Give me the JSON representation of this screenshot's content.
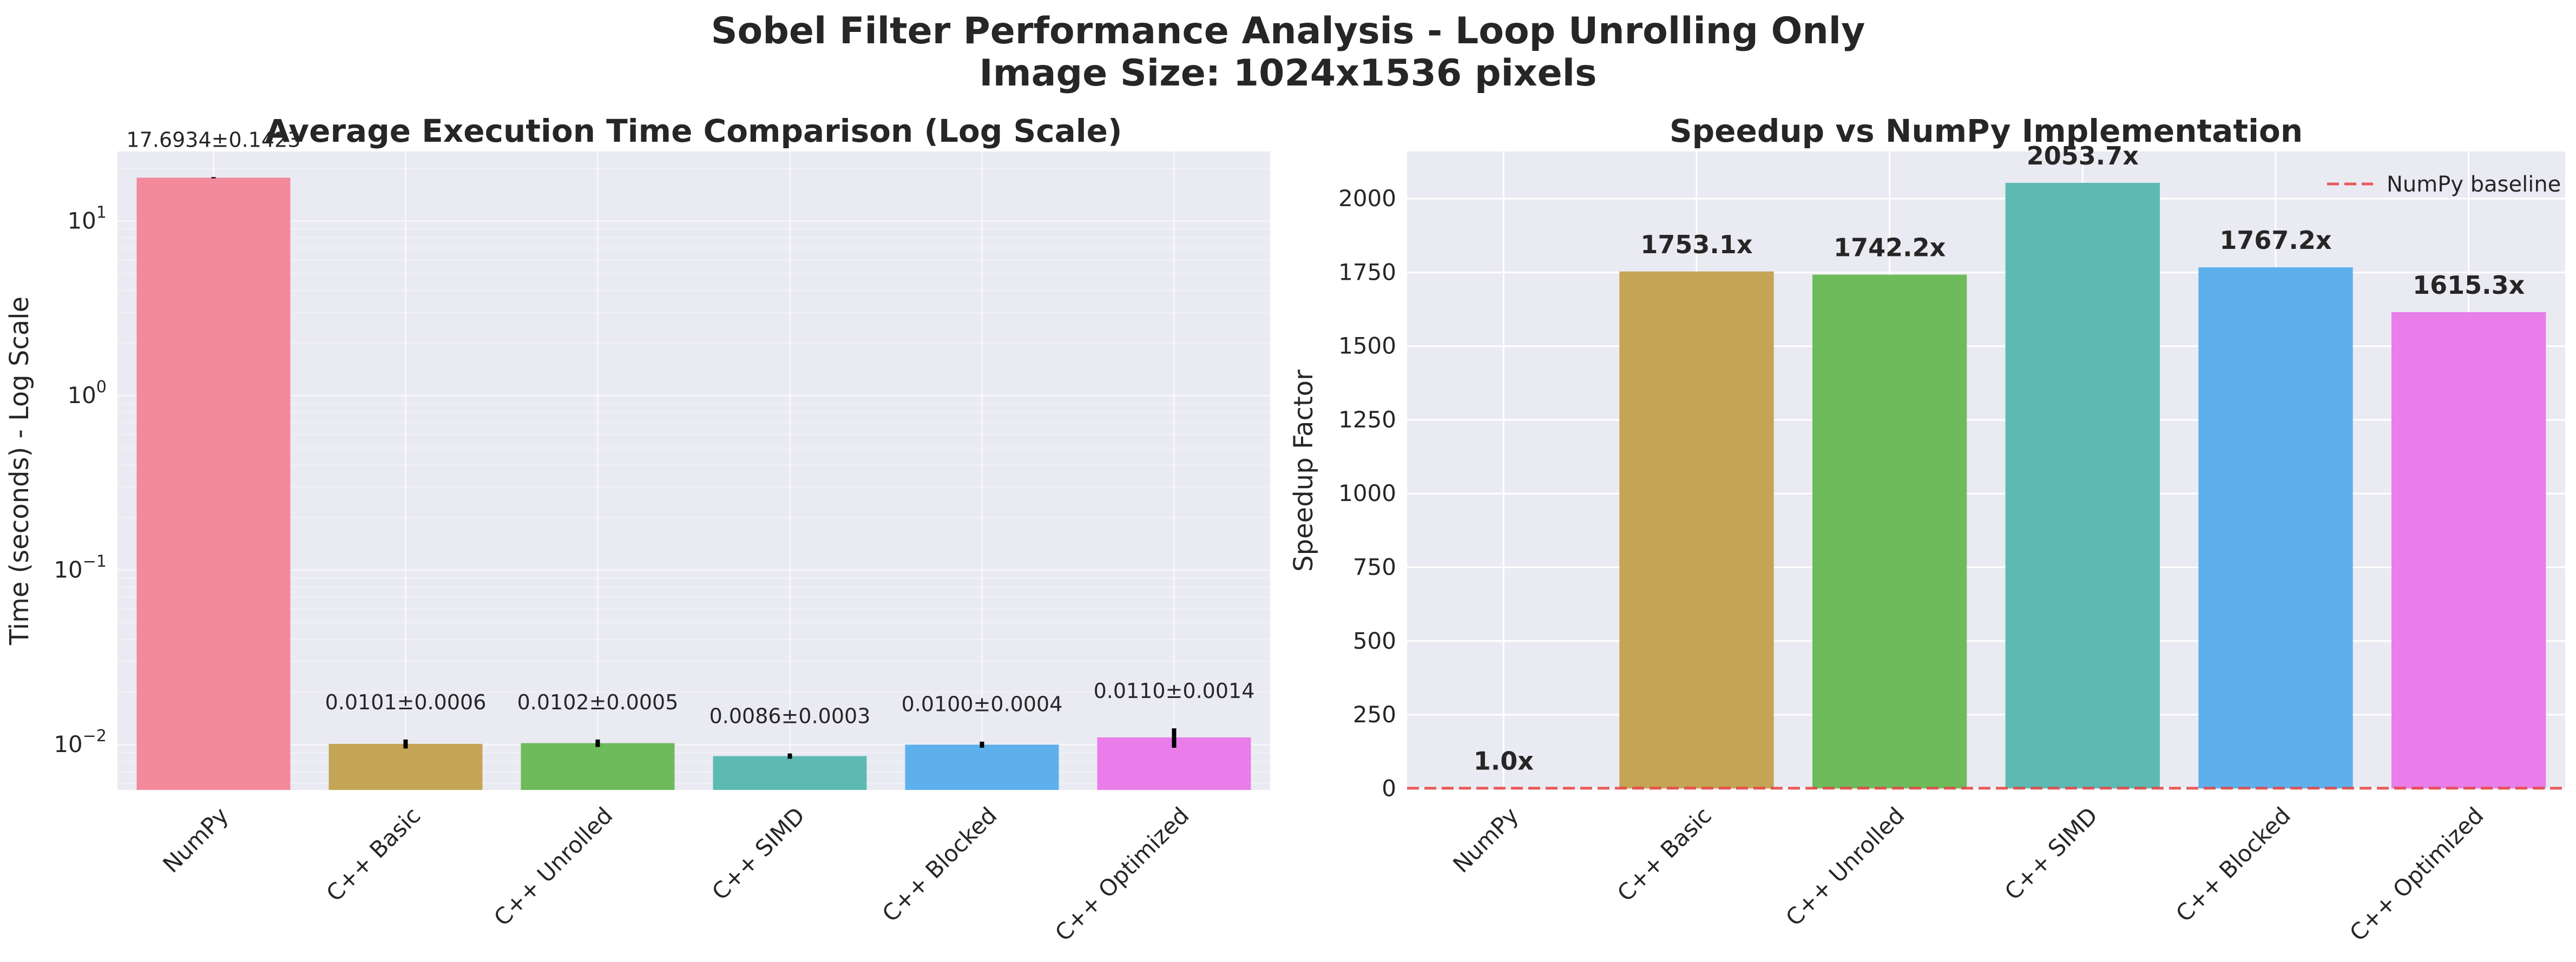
{
  "suptitle_line1": "Sobel Filter Performance Analysis - Loop Unrolling Only",
  "suptitle_line2": "Image Size: 1024x1536 pixels",
  "colors": {
    "panel_bg": "#eaeaf2",
    "grid": "#ffffff",
    "text": "#262626",
    "baseline": "#e8413f",
    "errorbar": "#000000",
    "bars": [
      "#f28a9c",
      "#c4a555",
      "#6dbb5b",
      "#5cbab3",
      "#5eb0ec",
      "#e97de9"
    ]
  },
  "chart_data": [
    {
      "type": "bar",
      "title": "Average Execution Time Comparison (Log Scale)",
      "xlabel": "",
      "ylabel": "Time (seconds) - Log Scale",
      "yscale": "log",
      "ylim": [
        0.0055,
        25
      ],
      "yticks": [
        {
          "value": 10,
          "base": "10",
          "exp": "1"
        },
        {
          "value": 1,
          "base": "10",
          "exp": "0"
        },
        {
          "value": 0.1,
          "base": "10",
          "exp": "−1"
        },
        {
          "value": 0.01,
          "base": "10",
          "exp": "−2"
        }
      ],
      "categories": [
        "NumPy",
        "C++ Basic",
        "C++ Unrolled",
        "C++ SIMD",
        "C++ Blocked",
        "C++ Optimized"
      ],
      "values": [
        17.6934,
        0.0101,
        0.0102,
        0.0086,
        0.01,
        0.011
      ],
      "errors": [
        0.1423,
        0.0006,
        0.0005,
        0.0003,
        0.0004,
        0.0014
      ],
      "labels": [
        "17.6934±0.1423",
        "0.0101±0.0006",
        "0.0102±0.0005",
        "0.0086±0.0003",
        "0.0100±0.0004",
        "0.0110±0.0014"
      ],
      "grid": true,
      "legend": null
    },
    {
      "type": "bar",
      "title": "Speedup vs NumPy Implementation",
      "xlabel": "",
      "ylabel": "Speedup Factor",
      "yscale": "linear",
      "ylim": [
        -5,
        2160
      ],
      "yticks": [
        0,
        250,
        500,
        750,
        1000,
        1250,
        1500,
        1750,
        2000
      ],
      "categories": [
        "NumPy",
        "C++ Basic",
        "C++ Unrolled",
        "C++ SIMD",
        "C++ Blocked",
        "C++ Optimized"
      ],
      "values": [
        1.0,
        1753.1,
        1742.2,
        2053.7,
        1767.2,
        1615.3
      ],
      "labels": [
        "1.0x",
        "1753.1x",
        "1742.2x",
        "2053.7x",
        "1767.2x",
        "1615.3x"
      ],
      "baseline": {
        "value": 1,
        "label": "NumPy baseline"
      },
      "grid": true,
      "legend": "top-right"
    }
  ]
}
